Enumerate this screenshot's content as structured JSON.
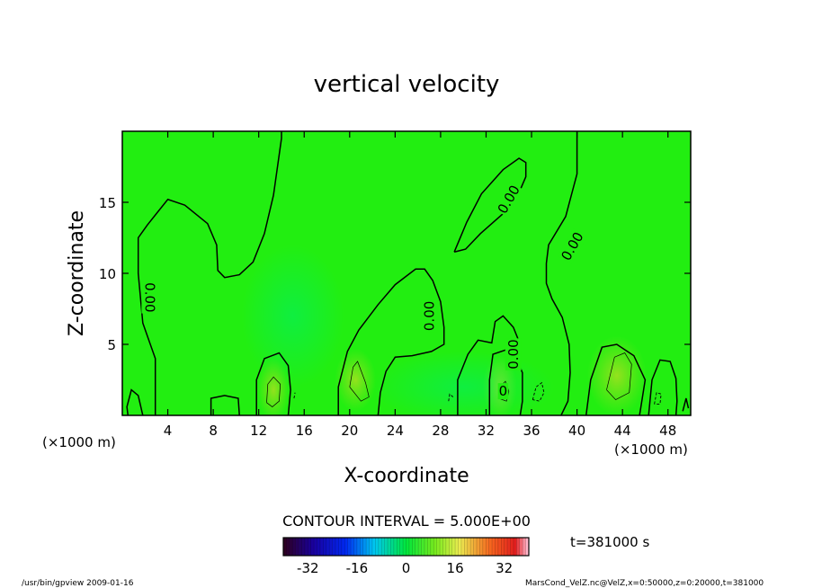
{
  "chart_data": {
    "type": "heatmap",
    "title": "vertical velocity",
    "xlabel": "X-coordinate",
    "ylabel": "Z-coordinate",
    "x_unit_left": "(×1000 m)",
    "x_unit_right": "(×1000 m)",
    "xlim": [
      0,
      50
    ],
    "ylim": [
      0,
      20
    ],
    "x_ticks": [
      4,
      8,
      12,
      16,
      20,
      24,
      28,
      32,
      36,
      40,
      44,
      48
    ],
    "y_ticks": [
      5,
      10,
      15
    ],
    "contour_interval_text": "CONTOUR INTERVAL = 5.000E+00",
    "time_text": "t=381000 s",
    "contour_labels": [
      {
        "text": "0.00",
        "x": 2.4,
        "z": 8.3,
        "rotate": 90
      },
      {
        "text": "0.00",
        "x": 27.0,
        "z": 7.0,
        "rotate": -90
      },
      {
        "text": "0.00",
        "x": 34.4,
        "z": 4.3,
        "rotate": -90
      },
      {
        "text": "0.00",
        "x": 34.0,
        "z": 15.2,
        "rotate": -60
      },
      {
        "text": "0.00",
        "x": 39.6,
        "z": 11.9,
        "rotate": -60
      },
      {
        "text": "0",
        "x": 33.5,
        "z": 1.7,
        "rotate": 0
      }
    ],
    "colorbar": {
      "min": -40,
      "max": 40,
      "ticks": [
        -32,
        -16,
        0,
        16,
        32
      ]
    },
    "colors": {
      "field_background": "#22ee11",
      "frame": "#000000"
    }
  },
  "footer": {
    "left": "/usr/bin/gpview   2009-01-16",
    "right": "MarsCond_VelZ.nc@VelZ,x=0:50000,z=0:20000,t=381000"
  }
}
